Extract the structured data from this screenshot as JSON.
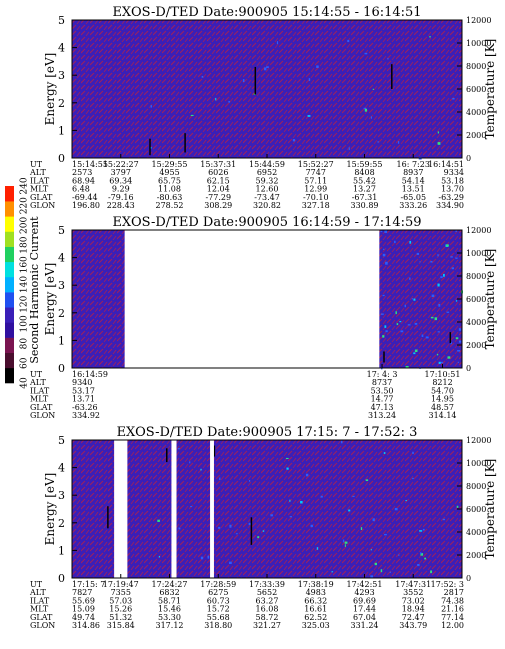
{
  "colors": {
    "background_purple": "#3a1fb8",
    "texture_red": "#a0205a",
    "speckle_blue": "#2a5cff",
    "speckle_cyan": "#00c8ff",
    "speckle_green": "#30e080",
    "no_data": "#ffffff"
  },
  "colorbar": {
    "label": "Second Harmonic Current",
    "tick_labels": [
      "40",
      "60",
      "80",
      "100",
      "120",
      "140",
      "160",
      "180",
      "200",
      "220",
      "240"
    ],
    "colors": [
      "#000000",
      "#4a0e2e",
      "#7a1450",
      "#3010a0",
      "#3a1fb8",
      "#2050f0",
      "#00b0ff",
      "#00e0e0",
      "#20d060",
      "#a0e020",
      "#ffff00",
      "#ff9000",
      "#ff2000"
    ]
  },
  "chart_data": [
    {
      "type": "heatmap",
      "title": "EXOS-D/TED   Date:900905   15:14:55 - 16:14:51",
      "ylabel": "Energy [eV]",
      "y2label": "Temperature [K]",
      "ylim": [
        0,
        5
      ],
      "y2lim": [
        0,
        12000
      ],
      "y_ticks": [
        "0",
        "1",
        "2",
        "3",
        "4",
        "5"
      ],
      "y2_ticks": [
        "0",
        "2000",
        "4000",
        "6000",
        "8000",
        "10000",
        "12000"
      ],
      "data_gaps": [],
      "streaks": [
        [
          0.47,
          3.3,
          2.3
        ],
        [
          0.82,
          3.4,
          2.5
        ],
        [
          0.2,
          0.7,
          0.1
        ],
        [
          0.29,
          0.9,
          0.2
        ]
      ],
      "orbit_table": {
        "row_labels": [
          "UT",
          "ALT",
          "ILAT",
          "MLT",
          "GLAT",
          "GLON"
        ],
        "columns": [
          {
            "pos": 0.0,
            "values": [
              "15:14:55",
              "2573",
              "68.94",
              "6.48",
              "-69.44",
              "196.80"
            ]
          },
          {
            "pos": 0.125,
            "values": [
              "15:22:27",
              "3797",
              "69.34",
              "9.29",
              "-79.16",
              "228.43"
            ]
          },
          {
            "pos": 0.25,
            "values": [
              "15:29:55",
              "4955",
              "65.75",
              "11.08",
              "-80.63",
              "278.52"
            ]
          },
          {
            "pos": 0.375,
            "values": [
              "15:37:31",
              "6026",
              "62.15",
              "12.04",
              "-77.29",
              "308.29"
            ]
          },
          {
            "pos": 0.5,
            "values": [
              "15:44:59",
              "6952",
              "59.32",
              "12.60",
              "-73.47",
              "320.82"
            ]
          },
          {
            "pos": 0.625,
            "values": [
              "15:52:27",
              "7747",
              "57.11",
              "12.99",
              "-70.10",
              "327.18"
            ]
          },
          {
            "pos": 0.75,
            "values": [
              "15:59:55",
              "8408",
              "55.42",
              "13.27",
              "-67.31",
              "330.89"
            ]
          },
          {
            "pos": 0.875,
            "values": [
              "16: 7:23",
              "8937",
              "54.14",
              "13.51",
              "-65.05",
              "333.26"
            ]
          },
          {
            "pos": 1.0,
            "values": [
              "16:14:51",
              "9334",
              "53.18",
              "13.70",
              "-63.29",
              "334.90"
            ]
          }
        ]
      }
    },
    {
      "type": "heatmap",
      "title": "EXOS-D/TED   Date:900905   16:14:59 - 17:14:59",
      "ylabel": "Energy [eV]",
      "y2label": "Temperature [K]",
      "ylim": [
        0,
        5
      ],
      "y2lim": [
        0,
        12000
      ],
      "y_ticks": [
        "0",
        "1",
        "2",
        "3",
        "4",
        "5"
      ],
      "y2_ticks": [
        "0",
        "2000",
        "4000",
        "6000",
        "8000",
        "10000",
        "12000"
      ],
      "data_gaps": [
        [
          0.135,
          0.788
        ]
      ],
      "streaks": [
        [
          0.97,
          1.3,
          0.9
        ],
        [
          0.8,
          0.6,
          0.2
        ]
      ],
      "orbit_table": {
        "row_labels": [
          "UT",
          "ALT",
          "ILAT",
          "MLT",
          "GLAT",
          "GLON"
        ],
        "columns": [
          {
            "pos": 0.0,
            "values": [
              "16:14:59",
              "9340",
              "53.17",
              "13.71",
              "-63.26",
              "334.92"
            ]
          },
          {
            "pos": 0.795,
            "values": [
              "17: 4: 3",
              "8737",
              "53.50",
              "14.77",
              "47.13",
              "313.24"
            ]
          },
          {
            "pos": 0.95,
            "values": [
              "17:10:51",
              "8212",
              "54.70",
              "14.95",
              "48.57",
              "314.14"
            ]
          }
        ]
      }
    },
    {
      "type": "heatmap",
      "title": "EXOS-D/TED   Date:900905   17:15: 7 - 17:52: 3",
      "ylabel": "Energy [eV]",
      "y2label": "Temperature [K]",
      "ylim": [
        0,
        5
      ],
      "y2lim": [
        0,
        12000
      ],
      "y_ticks": [
        "0",
        "1",
        "2",
        "3",
        "4",
        "5"
      ],
      "y2_ticks": [
        "0",
        "2000",
        "4000",
        "6000",
        "8000",
        "10000",
        "12000"
      ],
      "data_gaps": [
        [
          0.108,
          0.142
        ],
        [
          0.255,
          0.268
        ],
        [
          0.354,
          0.364
        ]
      ],
      "streaks": [
        [
          0.092,
          2.6,
          1.8
        ],
        [
          0.243,
          4.7,
          4.2
        ],
        [
          0.365,
          4.8,
          4.4
        ],
        [
          0.46,
          2.2,
          1.2
        ]
      ],
      "orbit_table": {
        "row_labels": [
          "UT",
          "ALT",
          "ILAT",
          "MLT",
          "GLAT",
          "GLON"
        ],
        "columns": [
          {
            "pos": 0.0,
            "values": [
              "17:15: 7",
              "7827",
              "55.69",
              "15.09",
              "49.74",
              "314.86"
            ]
          },
          {
            "pos": 0.125,
            "values": [
              "17:19:47",
              "7355",
              "57.03",
              "15.26",
              "51.32",
              "315.84"
            ]
          },
          {
            "pos": 0.25,
            "values": [
              "17:24:27",
              "6832",
              "58.71",
              "15.46",
              "53.30",
              "317.12"
            ]
          },
          {
            "pos": 0.375,
            "values": [
              "17:28:59",
              "6275",
              "60.73",
              "15.72",
              "55.68",
              "318.80"
            ]
          },
          {
            "pos": 0.5,
            "values": [
              "17:33:39",
              "5652",
              "63.27",
              "16.08",
              "58.72",
              "321.27"
            ]
          },
          {
            "pos": 0.625,
            "values": [
              "17:38:19",
              "4983",
              "66.32",
              "16.61",
              "62.52",
              "325.03"
            ]
          },
          {
            "pos": 0.75,
            "values": [
              "17:42:51",
              "4293",
              "69.69",
              "17.44",
              "67.04",
              "331.24"
            ]
          },
          {
            "pos": 0.875,
            "values": [
              "17:47:31",
              "3552",
              "73.02",
              "18.94",
              "72.47",
              "343.79"
            ]
          },
          {
            "pos": 1.0,
            "values": [
              "17:52: 3",
              "2817",
              "74.38",
              "21.16",
              "77.14",
              "12.00"
            ]
          }
        ]
      }
    }
  ]
}
